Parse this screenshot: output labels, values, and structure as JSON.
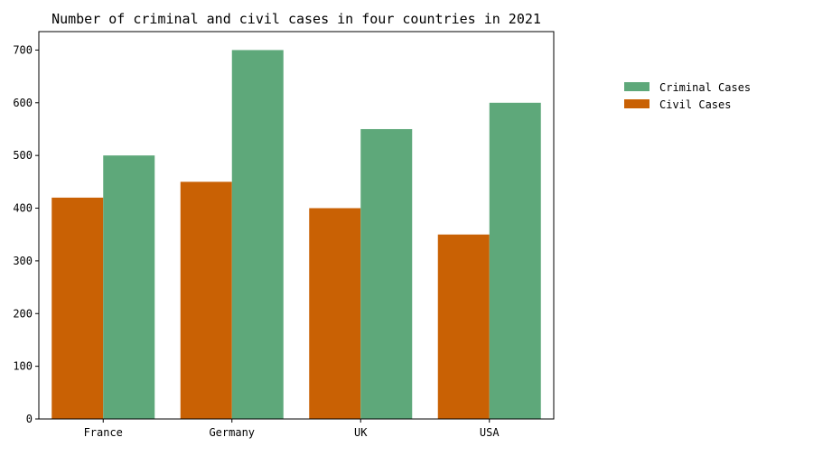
{
  "chart_data": {
    "type": "bar",
    "title": "Number of criminal and civil cases in four countries in 2021",
    "categories": [
      "France",
      "Germany",
      "UK",
      "USA"
    ],
    "series": [
      {
        "name": "Civil Cases",
        "values": [
          420,
          450,
          400,
          350
        ],
        "color": "#c96104"
      },
      {
        "name": "Criminal Cases",
        "values": [
          500,
          700,
          550,
          600
        ],
        "color": "#5ea87a"
      }
    ],
    "legend_order": [
      "Criminal Cases",
      "Civil Cases"
    ],
    "y_ticks": [
      0,
      100,
      200,
      300,
      400,
      500,
      600,
      700
    ],
    "ylim": [
      0,
      735
    ],
    "xlabel": "",
    "ylabel": "",
    "grid": false,
    "legend_position": "right"
  }
}
